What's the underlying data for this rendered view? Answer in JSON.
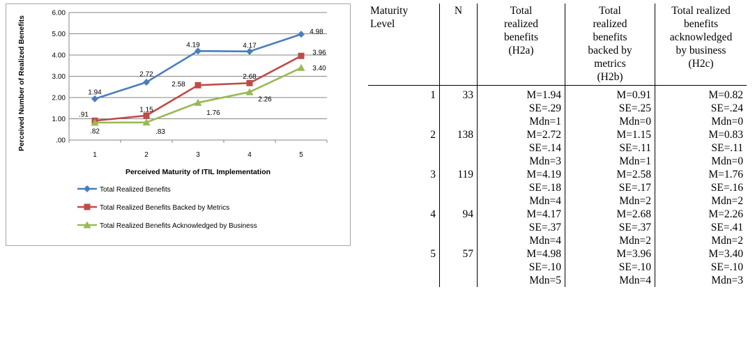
{
  "chart_data": {
    "type": "line",
    "title": "",
    "xlabel": "Perceived Maturity of ITIL Implementation",
    "ylabel": "Perceived Number of Realized Benefits",
    "categories": [
      "1",
      "2",
      "3",
      "4",
      "5"
    ],
    "y_ticks": [
      "6.00",
      "5.00",
      "4.00",
      "3.00",
      "2.00",
      "1.00",
      ".00"
    ],
    "ylim": [
      0,
      6
    ],
    "grid": "horizontal",
    "legend_position": "bottom",
    "series": [
      {
        "name": "Total Realized Benefits",
        "color": "#4a7ebb",
        "marker": "diamond",
        "values": [
          1.94,
          2.72,
          4.19,
          4.17,
          4.98
        ],
        "labels": [
          "1.94",
          "2.72",
          "4.19",
          "4.17",
          "4.98"
        ]
      },
      {
        "name": "Total Realized Benefits Backed by Metrics",
        "color": "#be4b48",
        "marker": "square",
        "values": [
          0.91,
          1.15,
          2.58,
          2.68,
          3.96
        ],
        "labels": [
          ".91",
          "1.15",
          "2.58",
          "2.68",
          "3.96"
        ]
      },
      {
        "name": "Total Realized Benefits Acknowledged by Business",
        "color": "#98b954",
        "marker": "triangle",
        "values": [
          0.82,
          0.83,
          1.76,
          2.26,
          3.4
        ],
        "labels": [
          ".82",
          ".83",
          "1.76",
          "2.26",
          "3.40"
        ]
      }
    ]
  },
  "table": {
    "headers": [
      [
        "Maturity",
        "Level"
      ],
      [
        "N"
      ],
      [
        "Total",
        "realized",
        "benefits",
        "(H2a)"
      ],
      [
        "Total",
        "realized",
        "benefits",
        "backed by",
        "metrics",
        "(H2b)"
      ],
      [
        "Total realized",
        "benefits",
        "acknowledged",
        "by business",
        "(H2c)"
      ]
    ],
    "rows": [
      [
        "1",
        "33",
        "M=1.94",
        "M=0.91",
        "M=0.82"
      ],
      [
        "",
        "",
        "SE=.29",
        "SE=.25",
        "SE=.24"
      ],
      [
        "",
        "",
        "Mdn=1",
        "Mdn=0",
        "Mdn=0"
      ],
      [
        "2",
        "138",
        "M=2.72",
        "M=1.15",
        "M=0.83"
      ],
      [
        "",
        "",
        "SE=.14",
        "SE=.11",
        "SE=.11"
      ],
      [
        "",
        "",
        "Mdn=3",
        "Mdn=1",
        "Mdn=0"
      ],
      [
        "3",
        "119",
        "M=4.19",
        "M=2.58",
        "M=1.76"
      ],
      [
        "",
        "",
        "SE=.18",
        "SE=.17",
        "SE=.16"
      ],
      [
        "",
        "",
        "Mdn=4",
        "Mdn=2",
        "Mdn=2"
      ],
      [
        "4",
        "94",
        "M=4.17",
        "M=2.68",
        "M=2.26"
      ],
      [
        "",
        "",
        "SE=.37",
        "SE=.37",
        "SE=.41"
      ],
      [
        "",
        "",
        "Mdn=4",
        "Mdn=2",
        "Mdn=2"
      ],
      [
        "5",
        "57",
        "M=4.98",
        "M=3.96",
        "M=3.40"
      ],
      [
        "",
        "",
        "SE=.10",
        "SE=.10",
        "SE=.10"
      ],
      [
        "",
        "",
        "Mdn=5",
        "Mdn=4",
        "Mdn=3"
      ]
    ]
  }
}
